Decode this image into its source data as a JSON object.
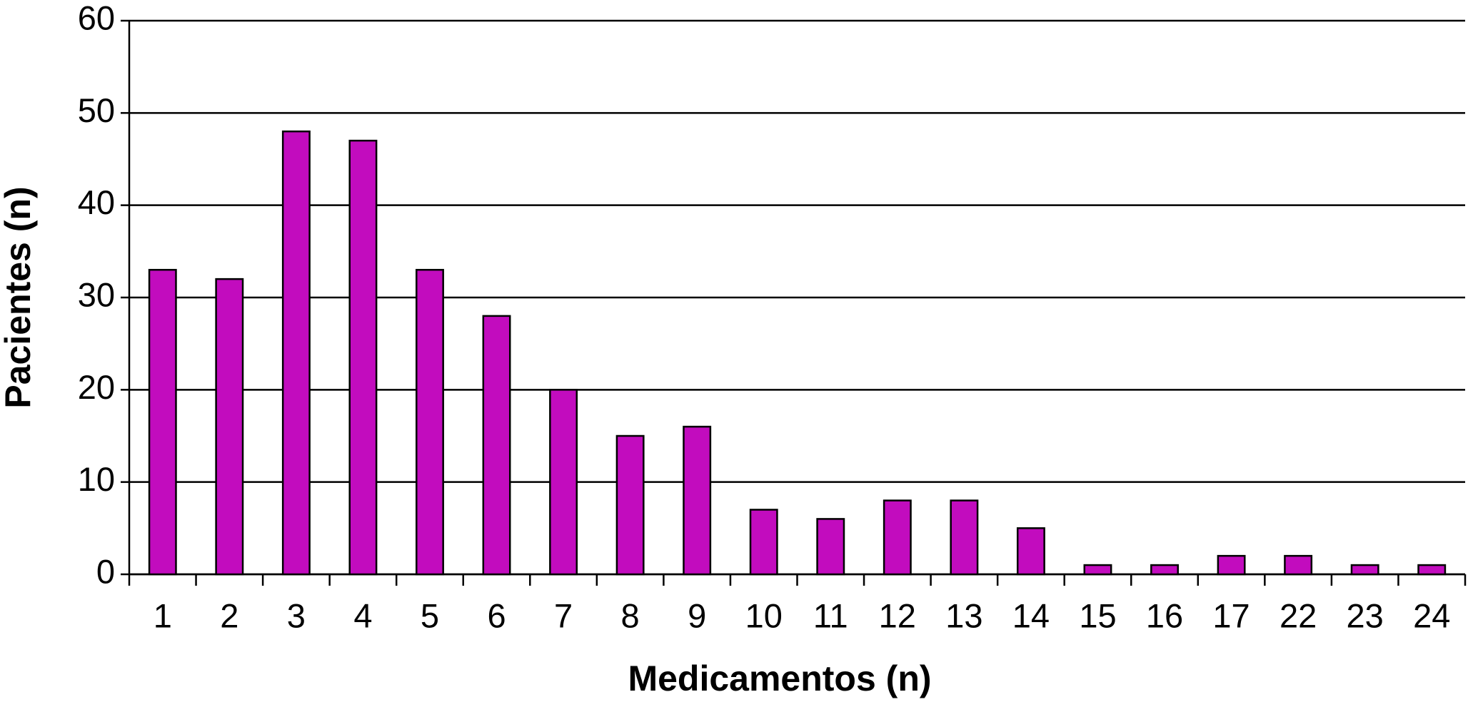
{
  "chart_data": {
    "type": "bar",
    "x_label": "Medicamentos (n)",
    "y_label": "Pacientes (n)",
    "categories": [
      "1",
      "2",
      "3",
      "4",
      "5",
      "6",
      "7",
      "8",
      "9",
      "10",
      "11",
      "12",
      "13",
      "14",
      "15",
      "16",
      "17",
      "22",
      "23",
      "24"
    ],
    "values": [
      33,
      32,
      48,
      47,
      33,
      28,
      20,
      15,
      16,
      7,
      6,
      8,
      8,
      5,
      1,
      1,
      2,
      2,
      1,
      1
    ],
    "color": "#c20cbe",
    "ylim": [
      0,
      60
    ],
    "yticks": [
      0,
      10,
      20,
      30,
      40,
      50,
      60
    ],
    "grid": true
  }
}
